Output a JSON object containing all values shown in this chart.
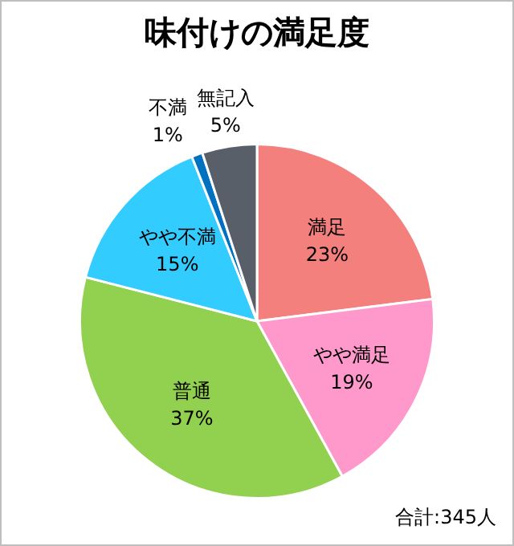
{
  "chart_data": {
    "type": "pie",
    "title": "味付けの満足度",
    "categories": [
      "満足",
      "やや満足",
      "普通",
      "やや不満",
      "不満",
      "無記入"
    ],
    "values": [
      23,
      19,
      37,
      15,
      1,
      5
    ],
    "colors": [
      "#f4807d",
      "#ff99cc",
      "#92d050",
      "#33ccff",
      "#0070c0",
      "#595f69"
    ],
    "value_labels": [
      "23%",
      "19%",
      "37%",
      "15%",
      "1%",
      "5%"
    ],
    "legend": false,
    "annotations": [
      "合計:345人"
    ]
  }
}
